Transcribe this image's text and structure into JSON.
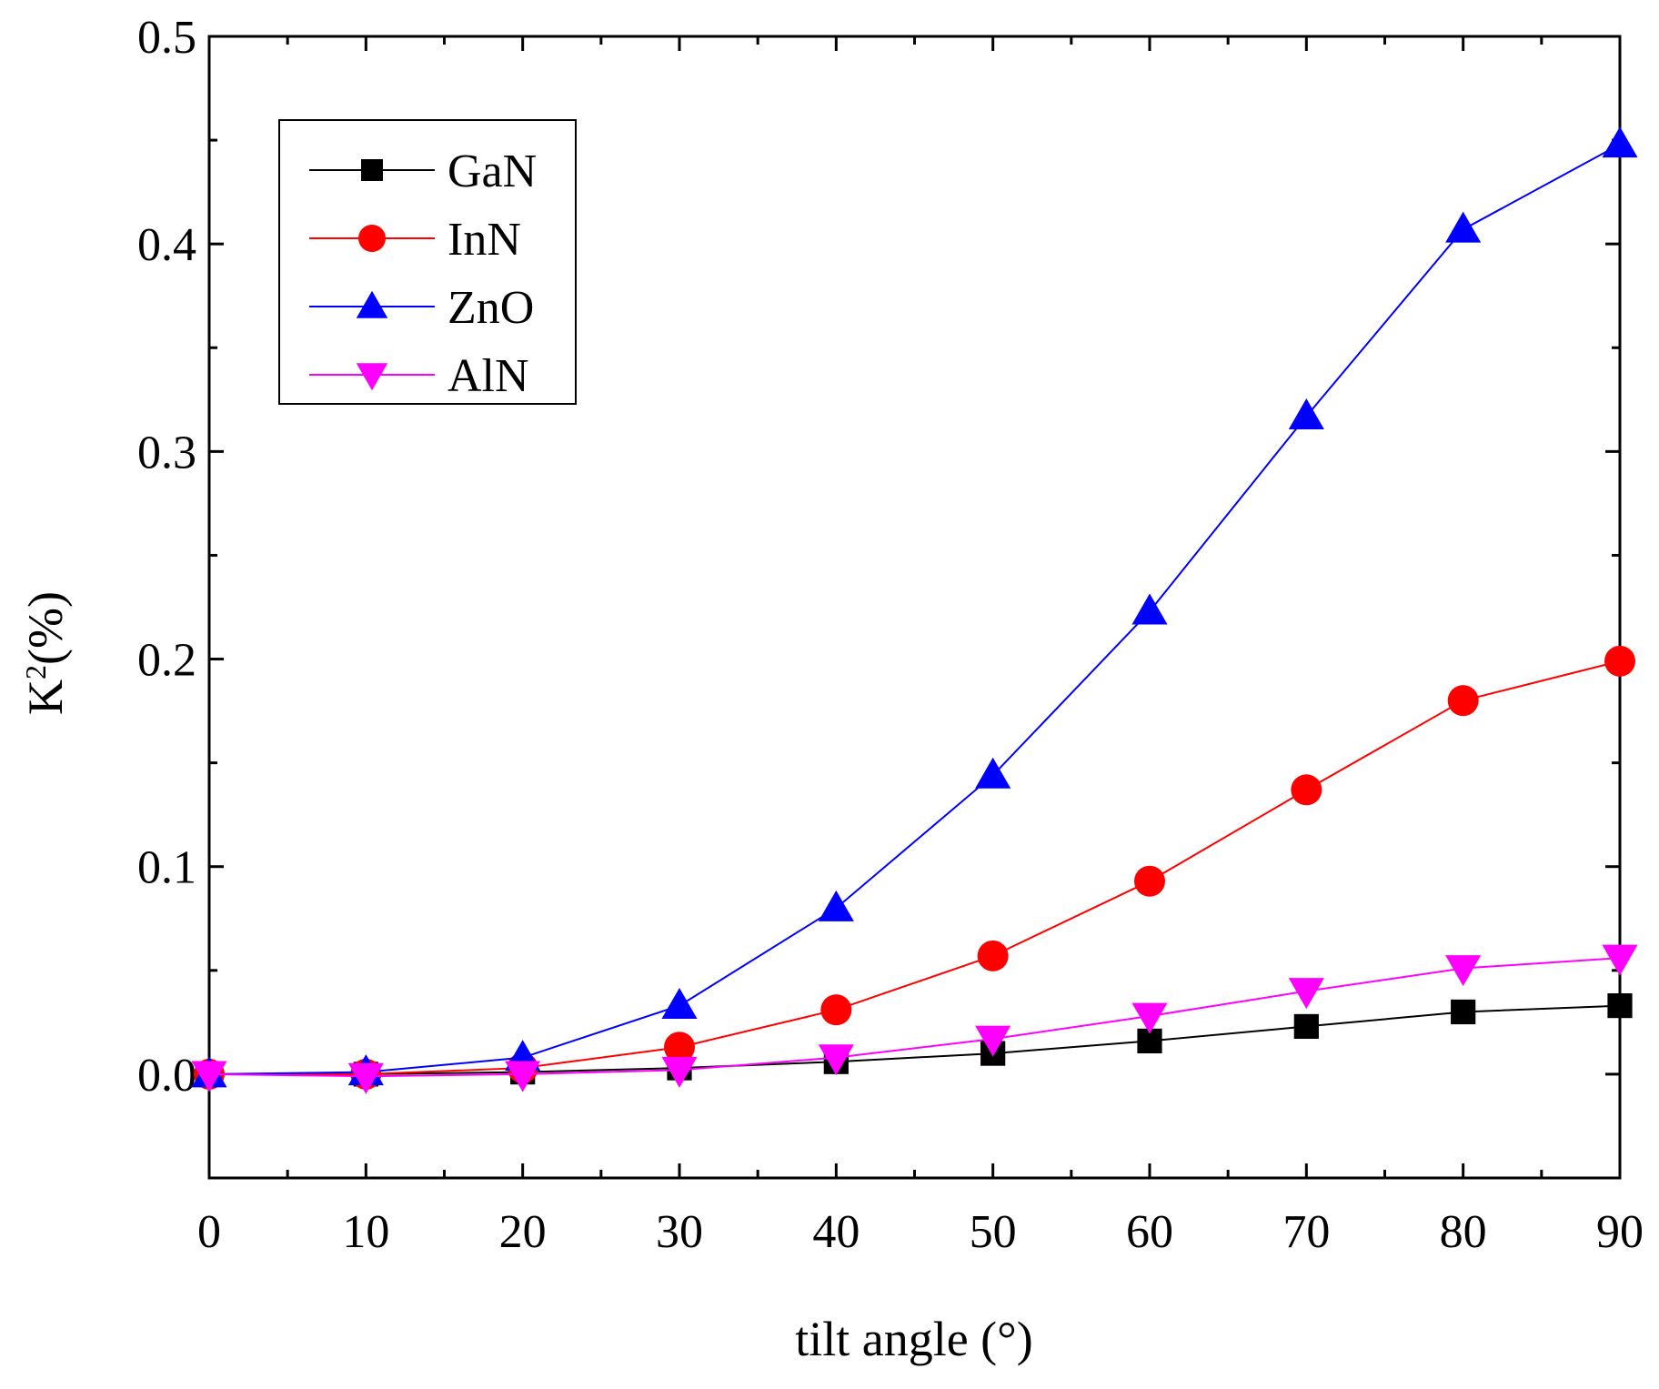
{
  "chart_data": {
    "type": "line",
    "title": "",
    "xlabel": "tilt angle (°)",
    "ylabel_main": "K",
    "ylabel_sup": "2",
    "ylabel_rest": "(%)",
    "xlim": [
      0,
      90
    ],
    "ylim": [
      -0.05,
      0.5
    ],
    "x_ticks": [
      "0",
      "10",
      "20",
      "30",
      "40",
      "50",
      "60",
      "70",
      "80",
      "90"
    ],
    "y_ticks": [
      "0.0",
      "0.1",
      "0.2",
      "0.3",
      "0.4",
      "0.5"
    ],
    "legend_position": "top-left",
    "x": [
      0,
      10,
      20,
      30,
      40,
      50,
      60,
      70,
      80,
      90
    ],
    "series": [
      {
        "name": "GaN",
        "color": "#000000",
        "marker": "square",
        "values": [
          0.0,
          0.0,
          0.001,
          0.003,
          0.006,
          0.01,
          0.016,
          0.023,
          0.03,
          0.033
        ]
      },
      {
        "name": "InN",
        "color": "#ff0000",
        "marker": "circle",
        "values": [
          0.0,
          0.0,
          0.003,
          0.013,
          0.031,
          0.057,
          0.093,
          0.137,
          0.18,
          0.199
        ]
      },
      {
        "name": "ZnO",
        "color": "#0000ff",
        "marker": "triangle-up",
        "values": [
          0.0,
          0.001,
          0.008,
          0.033,
          0.08,
          0.144,
          0.223,
          0.317,
          0.407,
          0.448
        ]
      },
      {
        "name": "AlN",
        "color": "#ff00ff",
        "marker": "triangle-down",
        "values": [
          0.0,
          -0.001,
          0.0,
          0.002,
          0.008,
          0.017,
          0.028,
          0.04,
          0.051,
          0.056
        ]
      }
    ]
  }
}
